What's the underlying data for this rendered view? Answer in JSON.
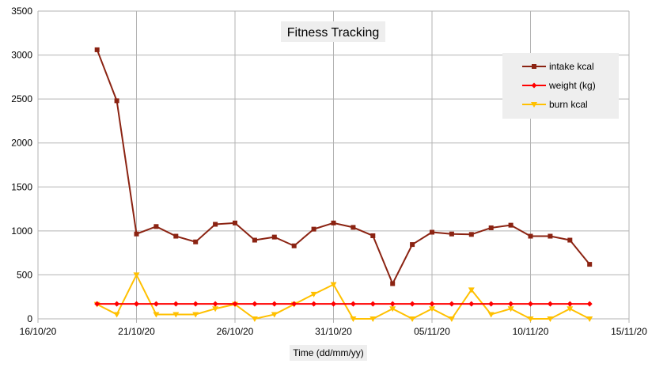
{
  "chart_data": {
    "type": "line",
    "title": "Fitness Tracking",
    "xlabel": "Time (dd/mm/yy)",
    "ylabel": "",
    "ylim": [
      0,
      3500
    ],
    "yticks": [
      0,
      500,
      1000,
      1500,
      2000,
      2500,
      3000,
      3500
    ],
    "xlim": [
      "16/10/20",
      "15/11/20"
    ],
    "xticks": [
      "16/10/20",
      "21/10/20",
      "26/10/20",
      "31/10/20",
      "05/11/20",
      "10/11/20",
      "15/11/20"
    ],
    "grid": true,
    "legend_position": "top-right",
    "x": [
      "19/10/20",
      "20/10/20",
      "21/10/20",
      "22/10/20",
      "23/10/20",
      "24/10/20",
      "25/10/20",
      "26/10/20",
      "27/10/20",
      "28/10/20",
      "29/10/20",
      "30/10/20",
      "31/10/20",
      "01/11/20",
      "02/11/20",
      "03/11/20",
      "04/11/20",
      "05/11/20",
      "06/11/20",
      "07/11/20",
      "08/11/20",
      "09/11/20",
      "10/11/20",
      "11/11/20",
      "12/11/20",
      "13/11/20"
    ],
    "series": [
      {
        "name": "intake kcal",
        "color": "#8b2312",
        "marker": "square",
        "values": [
          3060,
          2480,
          965,
          1050,
          940,
          875,
          1075,
          1090,
          895,
          930,
          830,
          1020,
          1090,
          1040,
          945,
          400,
          845,
          985,
          965,
          960,
          1035,
          1065,
          940,
          940,
          895,
          620
        ]
      },
      {
        "name": "weight (kg)",
        "color": "#ff0000",
        "marker": "diamond",
        "values": [
          170,
          170,
          170,
          170,
          170,
          170,
          170,
          170,
          170,
          170,
          170,
          170,
          170,
          170,
          170,
          170,
          170,
          170,
          170,
          170,
          170,
          170,
          170,
          170,
          170,
          170
        ]
      },
      {
        "name": "burn kcal",
        "color": "#ffc000",
        "marker": "triangle-down",
        "values": [
          165,
          50,
          500,
          50,
          50,
          50,
          115,
          165,
          0,
          50,
          165,
          280,
          390,
          0,
          0,
          115,
          0,
          115,
          0,
          330,
          50,
          115,
          0,
          0,
          115,
          0
        ]
      }
    ]
  }
}
